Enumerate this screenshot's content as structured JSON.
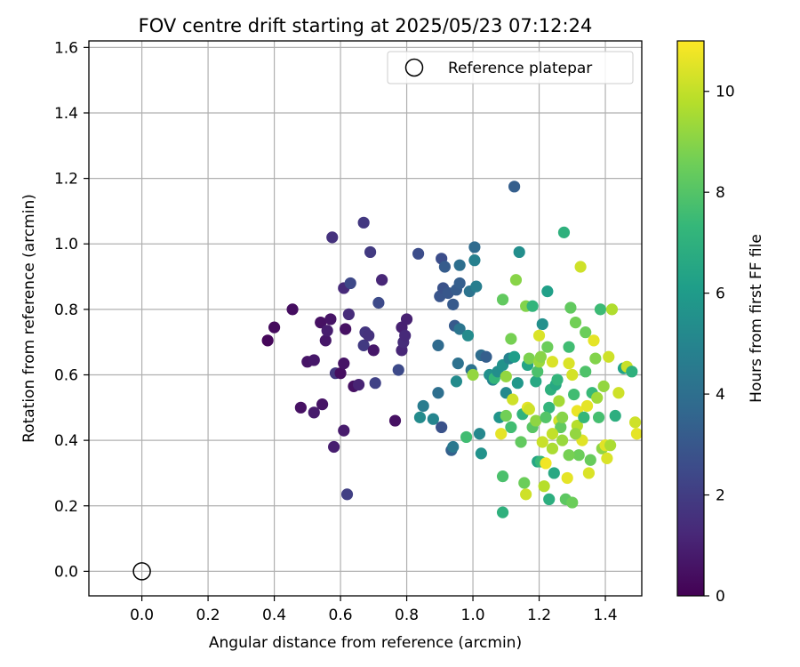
{
  "chart_data": {
    "type": "scatter",
    "title": "FOV centre drift starting at 2025/05/23 07:12:24",
    "xlabel": "Angular distance from reference (arcmin)",
    "ylabel": "Rotation from reference (arcmin)",
    "xlim": [
      -0.16,
      1.51
    ],
    "ylim": [
      -0.075,
      1.62
    ],
    "xticks": [
      0.0,
      0.2,
      0.4,
      0.6,
      0.8,
      1.0,
      1.2,
      1.4
    ],
    "xtick_labels": [
      "0.0",
      "0.2",
      "0.4",
      "0.6",
      "0.8",
      "1.0",
      "1.2",
      "1.4"
    ],
    "yticks": [
      0.0,
      0.2,
      0.4,
      0.6,
      0.8,
      1.0,
      1.2,
      1.4,
      1.6
    ],
    "ytick_labels": [
      "0.0",
      "0.2",
      "0.4",
      "0.6",
      "0.8",
      "1.0",
      "1.2",
      "1.4",
      "1.6"
    ],
    "grid": true,
    "legend": {
      "placement": "top-right",
      "entries": [
        "Reference platepar"
      ]
    },
    "reference_point": {
      "label": "Reference platepar",
      "x": 0.0,
      "y": 0.0,
      "marker": "hollow-circle"
    },
    "colorbar": {
      "label": "Hours from first FF file",
      "range": [
        0,
        11
      ],
      "ticks": [
        0,
        2,
        4,
        6,
        8,
        10
      ],
      "tick_labels": [
        "0",
        "2",
        "4",
        "6",
        "8",
        "10"
      ],
      "colormap": "viridis",
      "colormap_stops": [
        "#440154",
        "#482878",
        "#3e4989",
        "#31688e",
        "#26828e",
        "#1f9e89",
        "#35b779",
        "#6ece58",
        "#b5de2b",
        "#fde725"
      ]
    },
    "series": [
      {
        "points": [
          [
            0.38,
            0.705,
            0.2
          ],
          [
            0.4,
            0.745,
            0.3
          ],
          [
            0.455,
            0.8,
            0.4
          ],
          [
            0.48,
            0.5,
            0.5
          ],
          [
            0.5,
            0.64,
            0.6
          ],
          [
            0.52,
            0.645,
            0.7
          ],
          [
            0.52,
            0.485,
            0.8
          ],
          [
            0.54,
            0.76,
            0.5
          ],
          [
            0.545,
            0.51,
            0.6
          ],
          [
            0.555,
            0.705,
            0.7
          ],
          [
            0.56,
            0.735,
            0.9
          ],
          [
            0.57,
            0.77,
            0.6
          ],
          [
            0.575,
            1.02,
            1.6
          ],
          [
            0.58,
            0.38,
            0.9
          ],
          [
            0.585,
            0.605,
            1.8
          ],
          [
            0.6,
            0.605,
            0.4
          ],
          [
            0.61,
            0.43,
            0.8
          ],
          [
            0.61,
            0.865,
            1.3
          ],
          [
            0.61,
            0.635,
            0.6
          ],
          [
            0.615,
            0.74,
            0.5
          ],
          [
            0.62,
            0.235,
            2.1
          ],
          [
            0.625,
            0.785,
            1.4
          ],
          [
            0.63,
            0.88,
            2.4
          ],
          [
            0.64,
            0.565,
            0.5
          ],
          [
            0.655,
            0.57,
            1.1
          ],
          [
            0.67,
            1.065,
            1.8
          ],
          [
            0.67,
            0.69,
            1.9
          ],
          [
            0.675,
            0.73,
            1.7
          ],
          [
            0.685,
            0.72,
            1.6
          ],
          [
            0.69,
            0.975,
            1.9
          ],
          [
            0.7,
            0.675,
            0.7
          ],
          [
            0.705,
            0.575,
            2.2
          ],
          [
            0.715,
            0.82,
            2.5
          ],
          [
            0.725,
            0.89,
            1.2
          ],
          [
            0.765,
            0.46,
            0.5
          ],
          [
            0.775,
            0.615,
            2.5
          ],
          [
            0.785,
            0.675,
            1.2
          ],
          [
            0.785,
            0.745,
            1.0
          ],
          [
            0.79,
            0.7,
            1.4
          ],
          [
            0.795,
            0.72,
            1.3
          ],
          [
            0.8,
            0.77,
            1.0
          ],
          [
            0.835,
            0.97,
            2.6
          ],
          [
            0.84,
            0.47,
            5.3
          ],
          [
            0.85,
            0.505,
            4.6
          ],
          [
            0.88,
            0.465,
            5.0
          ],
          [
            0.895,
            0.545,
            4.0
          ],
          [
            0.895,
            0.69,
            3.8
          ],
          [
            0.9,
            0.84,
            2.9
          ],
          [
            0.905,
            0.955,
            2.6
          ],
          [
            0.91,
            0.865,
            2.8
          ],
          [
            0.915,
            0.93,
            3.2
          ],
          [
            0.905,
            0.44,
            2.8
          ],
          [
            0.925,
            0.85,
            3.0
          ],
          [
            0.935,
            0.37,
            3.4
          ],
          [
            0.94,
            0.815,
            3.1
          ],
          [
            0.94,
            0.38,
            4.4
          ],
          [
            0.945,
            0.75,
            3.1
          ],
          [
            0.95,
            0.58,
            5.3
          ],
          [
            0.95,
            0.86,
            3.2
          ],
          [
            0.955,
            0.635,
            4.1
          ],
          [
            0.96,
            0.935,
            4.0
          ],
          [
            0.96,
            0.88,
            3.3
          ],
          [
            0.96,
            0.74,
            4.3
          ],
          [
            0.98,
            0.41,
            7.6
          ],
          [
            0.985,
            0.72,
            5.3
          ],
          [
            0.99,
            0.855,
            4.2
          ],
          [
            0.995,
            0.615,
            4.2
          ],
          [
            1.0,
            0.6,
            9.2
          ],
          [
            1.005,
            0.99,
            3.8
          ],
          [
            1.005,
            0.95,
            4.8
          ],
          [
            1.01,
            0.87,
            4.7
          ],
          [
            1.02,
            0.42,
            5.1
          ],
          [
            1.025,
            0.36,
            5.6
          ],
          [
            1.025,
            0.66,
            3.9
          ],
          [
            1.04,
            0.655,
            3.3
          ],
          [
            1.05,
            0.6,
            5.5
          ],
          [
            1.06,
            0.585,
            5.0
          ],
          [
            1.065,
            0.59,
            7.3
          ],
          [
            1.075,
            0.61,
            5.4
          ],
          [
            1.08,
            0.47,
            5.7
          ],
          [
            1.085,
            0.42,
            10.6
          ],
          [
            1.09,
            0.63,
            5.6
          ],
          [
            1.09,
            0.83,
            8.3
          ],
          [
            1.09,
            0.29,
            7.8
          ],
          [
            1.09,
            0.18,
            7.0
          ],
          [
            1.1,
            0.595,
            9.2
          ],
          [
            1.1,
            0.545,
            5.2
          ],
          [
            1.1,
            0.475,
            8.6
          ],
          [
            1.11,
            0.65,
            4.9
          ],
          [
            1.115,
            0.71,
            8.7
          ],
          [
            1.115,
            0.44,
            7.6
          ],
          [
            1.12,
            0.525,
            10.2
          ],
          [
            1.125,
            1.175,
            3.3
          ],
          [
            1.125,
            0.655,
            6.1
          ],
          [
            1.13,
            0.89,
            9.0
          ],
          [
            1.135,
            0.575,
            5.8
          ],
          [
            1.14,
            0.975,
            5.4
          ],
          [
            1.145,
            0.395,
            8.3
          ],
          [
            1.15,
            0.48,
            7.1
          ],
          [
            1.155,
            0.27,
            8.5
          ],
          [
            1.16,
            0.81,
            8.9
          ],
          [
            1.16,
            0.235,
            10.2
          ],
          [
            1.165,
            0.63,
            6.4
          ],
          [
            1.165,
            0.5,
            10.6
          ],
          [
            1.17,
            0.495,
            10.2
          ],
          [
            1.17,
            0.65,
            8.8
          ],
          [
            1.18,
            0.81,
            7.2
          ],
          [
            1.18,
            0.44,
            8.1
          ],
          [
            1.19,
            0.58,
            6.6
          ],
          [
            1.19,
            0.46,
            9.1
          ],
          [
            1.195,
            0.61,
            7.8
          ],
          [
            1.195,
            0.335,
            6.5
          ],
          [
            1.2,
            0.64,
            9.3
          ],
          [
            1.2,
            0.72,
            10.4
          ],
          [
            1.205,
            0.655,
            9.0
          ],
          [
            1.205,
            0.335,
            7.4
          ],
          [
            1.21,
            0.755,
            5.5
          ],
          [
            1.21,
            0.395,
            10.1
          ],
          [
            1.215,
            0.26,
            9.8
          ],
          [
            1.22,
            0.33,
            10.8
          ],
          [
            1.225,
            0.685,
            8.5
          ],
          [
            1.225,
            0.855,
            6.2
          ],
          [
            1.23,
            0.22,
            6.9
          ],
          [
            1.23,
            0.5,
            7.2
          ],
          [
            1.235,
            0.555,
            7.0
          ],
          [
            1.24,
            0.375,
            9.6
          ],
          [
            1.24,
            0.64,
            10.4
          ],
          [
            1.245,
            0.3,
            6.6
          ],
          [
            1.25,
            0.57,
            6.6
          ],
          [
            1.255,
            0.585,
            7.2
          ],
          [
            1.26,
            0.46,
            10.2
          ],
          [
            1.265,
            0.44,
            8.3
          ],
          [
            1.27,
            0.4,
            9.3
          ],
          [
            1.275,
            1.035,
            7.0
          ],
          [
            1.28,
            0.22,
            8.2
          ],
          [
            1.285,
            0.285,
            10.6
          ],
          [
            1.29,
            0.685,
            7.6
          ],
          [
            1.29,
            0.635,
            10.4
          ],
          [
            1.295,
            0.805,
            8.3
          ],
          [
            1.3,
            0.21,
            8.5
          ],
          [
            1.3,
            0.6,
            10.3
          ],
          [
            1.305,
            0.54,
            7.6
          ],
          [
            1.31,
            0.76,
            8.6
          ],
          [
            1.315,
            0.445,
            9.8
          ],
          [
            1.315,
            0.49,
            10.7
          ],
          [
            1.32,
            0.355,
            8.5
          ],
          [
            1.325,
            0.93,
            10.2
          ],
          [
            1.33,
            0.4,
            10.5
          ],
          [
            1.335,
            0.47,
            7.3
          ],
          [
            1.34,
            0.73,
            8.5
          ],
          [
            1.345,
            0.505,
            10.6
          ],
          [
            1.35,
            0.3,
            10.4
          ],
          [
            1.355,
            0.34,
            8.4
          ],
          [
            1.36,
            0.545,
            7.4
          ],
          [
            1.365,
            0.705,
            10.6
          ],
          [
            1.37,
            0.65,
            8.9
          ],
          [
            1.375,
            0.53,
            9.4
          ],
          [
            1.38,
            0.47,
            7.7
          ],
          [
            1.385,
            0.8,
            7.5
          ],
          [
            1.39,
            0.375,
            9.1
          ],
          [
            1.395,
            0.565,
            9.2
          ],
          [
            1.4,
            0.385,
            10.5
          ],
          [
            1.405,
            0.345,
            10.4
          ],
          [
            1.41,
            0.655,
            10.2
          ],
          [
            1.415,
            0.385,
            9.6
          ],
          [
            1.42,
            0.8,
            9.7
          ],
          [
            1.43,
            0.475,
            6.9
          ],
          [
            1.44,
            0.545,
            10.2
          ],
          [
            1.455,
            0.62,
            6.3
          ],
          [
            1.465,
            0.625,
            10.1
          ],
          [
            1.48,
            0.61,
            7.0
          ],
          [
            1.49,
            0.455,
            10.2
          ],
          [
            1.495,
            0.42,
            10.6
          ],
          [
            1.27,
            0.47,
            9.0
          ],
          [
            1.22,
            0.47,
            8.0
          ],
          [
            1.26,
            0.52,
            9.5
          ],
          [
            1.29,
            0.355,
            8.7
          ],
          [
            1.31,
            0.42,
            9.2
          ],
          [
            1.34,
            0.61,
            7.9
          ],
          [
            1.24,
            0.42,
            10.0
          ]
        ]
      }
    ]
  }
}
